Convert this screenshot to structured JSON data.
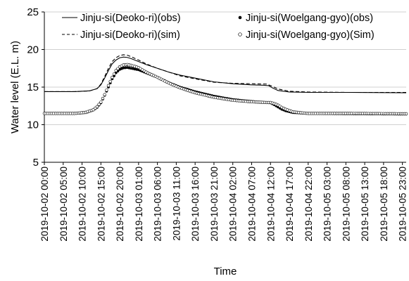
{
  "chart_data": {
    "type": "line",
    "xlabel": "Time",
    "ylabel": "Water level (E.L. m)",
    "ylim": [
      5,
      25
    ],
    "yticks": [
      5,
      10,
      15,
      20,
      25
    ],
    "grid": "horizontal",
    "legend_placement": "top",
    "x_tick_labels": [
      "2019-10-02 00:00",
      "2019-10-02 05:00",
      "2019-10-02 10:00",
      "2019-10-02 15:00",
      "2019-10-02 20:00",
      "2019-10-03 01:00",
      "2019-10-03 06:00",
      "2019-10-03 11:00",
      "2019-10-03 16:00",
      "2019-10-03 21:00",
      "2019-10-04 02:00",
      "2019-10-04 07:00",
      "2019-10-04 12:00",
      "2019-10-04 17:00",
      "2019-10-04 22:00",
      "2019-10-05 03:00",
      "2019-10-05 08:00",
      "2019-10-05 13:00",
      "2019-10-05 18:00",
      "2019-10-05 23:00"
    ],
    "x_hours": [
      0,
      5,
      10,
      15,
      20,
      25,
      30,
      35,
      40,
      45,
      50,
      55,
      60,
      65,
      70,
      75,
      80,
      85,
      90,
      95
    ],
    "xlim_hours": [
      0,
      96
    ],
    "series": [
      {
        "name": "Jinju-si(Deoko-ri)(obs)",
        "style": "solid",
        "color": "#000000",
        "points": [
          [
            0,
            14.4
          ],
          [
            8,
            14.4
          ],
          [
            12,
            14.5
          ],
          [
            14,
            14.8
          ],
          [
            15,
            15.3
          ],
          [
            16,
            16.2
          ],
          [
            17,
            17.2
          ],
          [
            18,
            18.1
          ],
          [
            19,
            18.6
          ],
          [
            20,
            18.9
          ],
          [
            21,
            19.0
          ],
          [
            22,
            18.95
          ],
          [
            23,
            18.8
          ],
          [
            25,
            18.4
          ],
          [
            27,
            18.0
          ],
          [
            30,
            17.5
          ],
          [
            33,
            17.0
          ],
          [
            36,
            16.6
          ],
          [
            40,
            16.2
          ],
          [
            45,
            15.7
          ],
          [
            50,
            15.45
          ],
          [
            55,
            15.3
          ],
          [
            58,
            15.25
          ],
          [
            59.5,
            15.2
          ],
          [
            60.5,
            14.9
          ],
          [
            62,
            14.55
          ],
          [
            65,
            14.35
          ],
          [
            70,
            14.3
          ],
          [
            80,
            14.3
          ],
          [
            96,
            14.25
          ]
        ]
      },
      {
        "name": "Jinju-si(Deoko-ri)(sim)",
        "style": "dashed",
        "color": "#000000",
        "points": [
          [
            0,
            14.4
          ],
          [
            8,
            14.4
          ],
          [
            12,
            14.5
          ],
          [
            14,
            14.8
          ],
          [
            15,
            15.4
          ],
          [
            16,
            16.4
          ],
          [
            17,
            17.5
          ],
          [
            18,
            18.4
          ],
          [
            19,
            18.9
          ],
          [
            20,
            19.2
          ],
          [
            21,
            19.3
          ],
          [
            22,
            19.25
          ],
          [
            23,
            19.05
          ],
          [
            25,
            18.6
          ],
          [
            27,
            18.1
          ],
          [
            30,
            17.5
          ],
          [
            33,
            17.0
          ],
          [
            36,
            16.5
          ],
          [
            40,
            16.1
          ],
          [
            45,
            15.65
          ],
          [
            50,
            15.5
          ],
          [
            55,
            15.45
          ],
          [
            59,
            15.4
          ],
          [
            60.5,
            15.1
          ],
          [
            62,
            14.75
          ],
          [
            65,
            14.45
          ],
          [
            70,
            14.35
          ],
          [
            80,
            14.3
          ],
          [
            96,
            14.3
          ]
        ]
      },
      {
        "name": "Jinju-si(Woelgang-gyo)(obs)",
        "style": "filled-dots",
        "color": "#000000",
        "points": [
          [
            0,
            11.5
          ],
          [
            8,
            11.5
          ],
          [
            11,
            11.6
          ],
          [
            13,
            11.95
          ],
          [
            14,
            12.3
          ],
          [
            15,
            12.9
          ],
          [
            16,
            13.9
          ],
          [
            17,
            15.0
          ],
          [
            18,
            16.1
          ],
          [
            19,
            16.9
          ],
          [
            20,
            17.35
          ],
          [
            21,
            17.55
          ],
          [
            22,
            17.6
          ],
          [
            23,
            17.5
          ],
          [
            25,
            17.3
          ],
          [
            27,
            16.9
          ],
          [
            30,
            16.3
          ],
          [
            33,
            15.6
          ],
          [
            36,
            15.0
          ],
          [
            40,
            14.4
          ],
          [
            45,
            13.8
          ],
          [
            50,
            13.35
          ],
          [
            55,
            13.1
          ],
          [
            59,
            12.95
          ],
          [
            60,
            12.9
          ],
          [
            61,
            12.65
          ],
          [
            62,
            12.35
          ],
          [
            63,
            12.05
          ],
          [
            64,
            11.85
          ],
          [
            66,
            11.6
          ],
          [
            70,
            11.5
          ],
          [
            80,
            11.45
          ],
          [
            96,
            11.4
          ]
        ]
      },
      {
        "name": "Jinju-si(Woelgang-gyo)(Sim)",
        "style": "open-dots",
        "color": "#000000",
        "points": [
          [
            0,
            11.5
          ],
          [
            8,
            11.5
          ],
          [
            11,
            11.65
          ],
          [
            13,
            12.0
          ],
          [
            14,
            12.4
          ],
          [
            15,
            13.0
          ],
          [
            16,
            14.0
          ],
          [
            17,
            15.2
          ],
          [
            18,
            16.3
          ],
          [
            19,
            17.2
          ],
          [
            20,
            17.7
          ],
          [
            21,
            17.95
          ],
          [
            22,
            18.0
          ],
          [
            23,
            17.9
          ],
          [
            25,
            17.6
          ],
          [
            27,
            17.0
          ],
          [
            30,
            16.3
          ],
          [
            33,
            15.55
          ],
          [
            36,
            14.9
          ],
          [
            40,
            14.25
          ],
          [
            45,
            13.65
          ],
          [
            50,
            13.25
          ],
          [
            55,
            13.05
          ],
          [
            59,
            12.95
          ],
          [
            60,
            12.95
          ],
          [
            61,
            12.8
          ],
          [
            62,
            12.6
          ],
          [
            63,
            12.3
          ],
          [
            64,
            12.05
          ],
          [
            66,
            11.7
          ],
          [
            70,
            11.5
          ],
          [
            80,
            11.5
          ],
          [
            96,
            11.45
          ]
        ]
      }
    ]
  }
}
